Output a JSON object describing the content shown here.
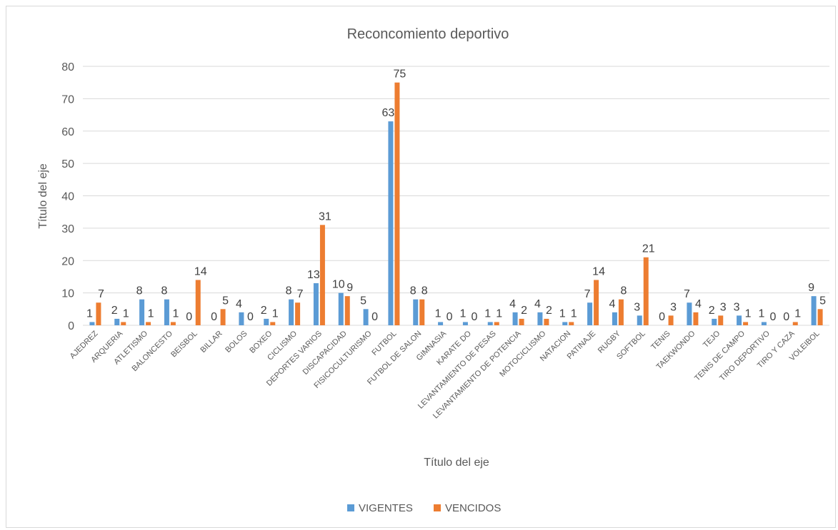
{
  "chart_data": {
    "type": "bar",
    "title": "Reconcomiento deportivo",
    "xlabel": "Título del eje",
    "ylabel": "Título del eje",
    "ylim": [
      0,
      80
    ],
    "yticks": [
      0,
      10,
      20,
      30,
      40,
      50,
      60,
      70,
      80
    ],
    "grid": true,
    "legend_position": "bottom",
    "categories": [
      "AJEDREZ",
      "ARQUERIA",
      "ATLETISMO",
      "BALONCESTO",
      "BEISBOL",
      "BILLAR",
      "BOLOS",
      "BOXEO",
      "CICLISMO",
      "DEPORTES VARIOS",
      "DISCAPACIDAD",
      "FISICOCULTURISMO",
      "FUTBOL",
      "FUTBOL DE SALON",
      "GIMNASIA",
      "KARATE DO",
      "LEVANTAMIENTO DE PESAS",
      "LEVANTAMIENTO DE POTENCIA",
      "MOTOCICLISMO",
      "NATACION",
      "PATINAJE",
      "RUGBY",
      "SOFTBOL",
      "TENIS",
      "TAEKWONDO",
      "TEJO",
      "TENIS DE CAMPO",
      "TIRO DEPORTIVO",
      "TIRO Y CAZA",
      "VOLEIBOL"
    ],
    "series": [
      {
        "name": "VIGENTES",
        "color": "#5b9bd5",
        "values": [
          1,
          2,
          8,
          8,
          0,
          0,
          4,
          2,
          8,
          13,
          10,
          5,
          63,
          8,
          1,
          1,
          1,
          4,
          4,
          1,
          7,
          4,
          3,
          0,
          7,
          2,
          3,
          1,
          0,
          9
        ]
      },
      {
        "name": "VENCIDOS",
        "color": "#ed7d31",
        "values": [
          7,
          1,
          1,
          1,
          14,
          5,
          0,
          1,
          7,
          31,
          9,
          0,
          75,
          8,
          0,
          0,
          1,
          2,
          2,
          1,
          14,
          8,
          21,
          3,
          4,
          3,
          1,
          0,
          1,
          5
        ]
      }
    ]
  }
}
